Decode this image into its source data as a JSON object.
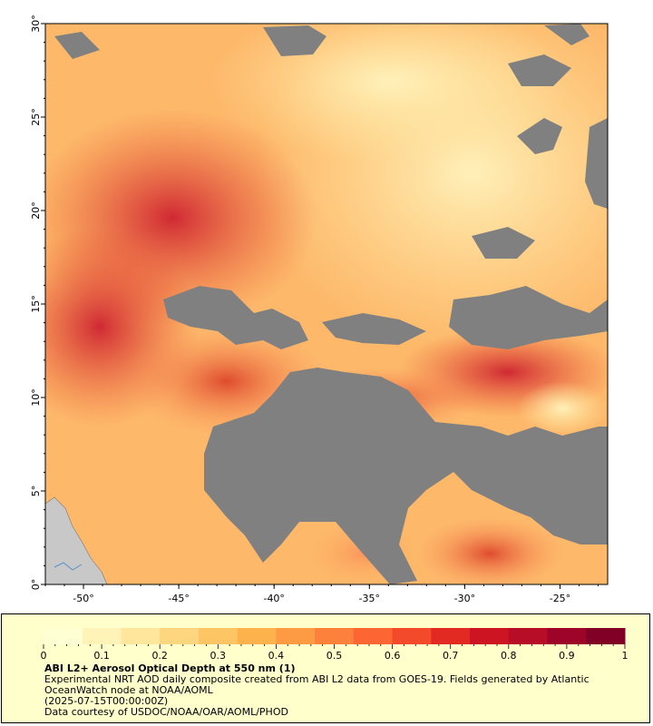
{
  "map": {
    "lon_ticks": [
      "-50°",
      "-45°",
      "-40°",
      "-35°",
      "-30°",
      "-25°"
    ],
    "lon_values": [
      -50,
      -45,
      -40,
      -35,
      -30,
      -25
    ],
    "lat_ticks": [
      "0°",
      "5°",
      "10°",
      "15°",
      "20°",
      "25°",
      "30°"
    ],
    "lat_values": [
      0,
      5,
      10,
      15,
      20,
      25,
      30
    ],
    "extent": {
      "lon_min": -52,
      "lon_max": -22.5,
      "lat_min": 0,
      "lat_max": 30
    },
    "colors": {
      "no_data": "#808080",
      "land": "#c8c8c8",
      "aod_low": "#fff0b0",
      "aod_mid": "#fd9a44",
      "aod_high": "#bd0026"
    }
  },
  "legend": {
    "tick_labels": [
      "0",
      "0.1",
      "0.2",
      "0.3",
      "0.4",
      "0.5",
      "0.6",
      "0.7",
      "0.8",
      "0.9",
      "1"
    ],
    "tick_values": [
      0,
      0.1,
      0.2,
      0.3,
      0.4,
      0.5,
      0.6,
      0.7,
      0.8,
      0.9,
      1
    ],
    "colors": [
      "#ffffd4",
      "#fff3b8",
      "#ffe69c",
      "#fed680",
      "#fec564",
      "#feb24c",
      "#fd9a44",
      "#fd803b",
      "#fc6632",
      "#f24a2a",
      "#e32a22",
      "#cc1422",
      "#b80d26",
      "#9e0428",
      "#800026"
    ]
  },
  "caption": {
    "title": "ABI L2+ Aerosol Optical Depth at 550 nm (1)",
    "line1": "Experimental NRT AOD daily composite created from ABI L2 data from GOES-19. Fields generated by Atlantic OceanWatch node at NOAA/AOML",
    "line2": "(2025-07-15T00:00:00Z)",
    "line3": "Data courtesy of USDOC/NOAA/OAR/AOML/PHOD"
  }
}
